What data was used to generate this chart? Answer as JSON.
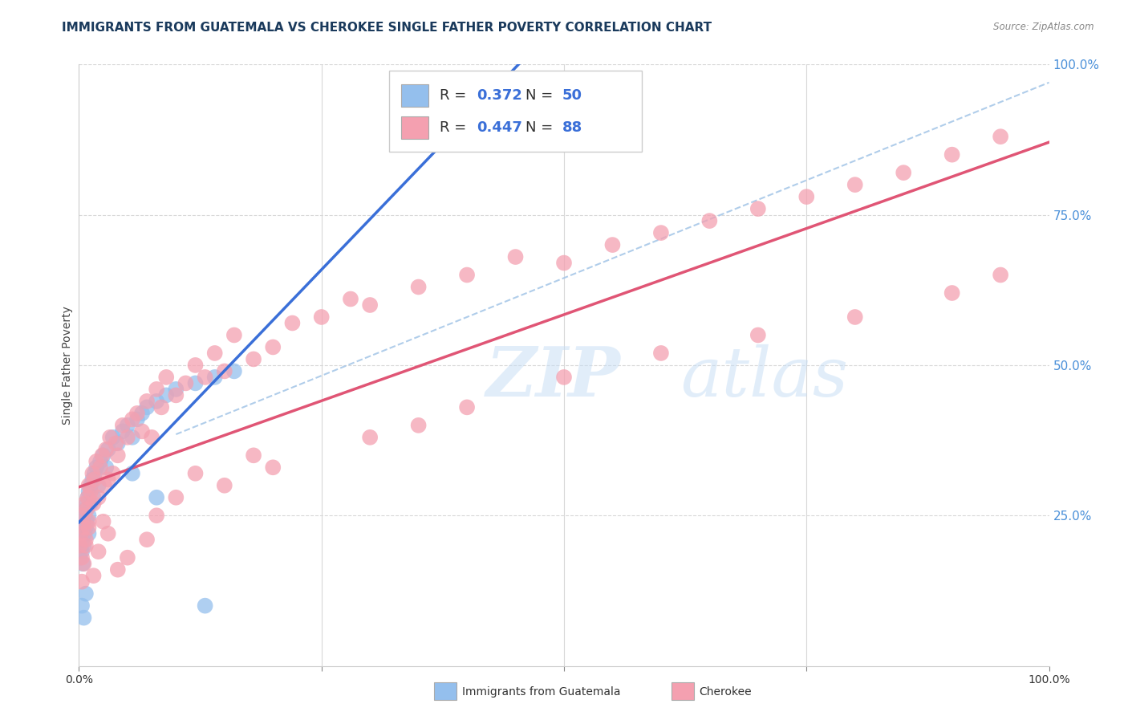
{
  "title": "IMMIGRANTS FROM GUATEMALA VS CHEROKEE SINGLE FATHER POVERTY CORRELATION CHART",
  "source": "Source: ZipAtlas.com",
  "ylabel": "Single Father Poverty",
  "legend_label1": "Immigrants from Guatemala",
  "legend_label2": "Cherokee",
  "r1": 0.372,
  "n1": 50,
  "r2": 0.447,
  "n2": 88,
  "color1": "#94bfed",
  "color2": "#f4a0b0",
  "line1_color": "#3a6fd8",
  "line2_color": "#e05575",
  "dashed_line_color": "#a8c8e8",
  "watermark_text": "ZIP",
  "watermark_text2": "atlas",
  "xlim": [
    0,
    1
  ],
  "ylim": [
    0,
    1
  ],
  "yticks": [
    0.0,
    0.25,
    0.5,
    0.75,
    1.0
  ],
  "ytick_labels": [
    "",
    "25.0%",
    "50.0%",
    "75.0%",
    "100.0%"
  ],
  "scatter1_x": [
    0.001,
    0.002,
    0.002,
    0.003,
    0.003,
    0.004,
    0.004,
    0.005,
    0.005,
    0.006,
    0.006,
    0.007,
    0.007,
    0.008,
    0.008,
    0.009,
    0.01,
    0.01,
    0.01,
    0.012,
    0.012,
    0.014,
    0.015,
    0.016,
    0.018,
    0.02,
    0.022,
    0.025,
    0.028,
    0.03,
    0.035,
    0.04,
    0.045,
    0.05,
    0.055,
    0.06,
    0.065,
    0.07,
    0.08,
    0.09,
    0.1,
    0.12,
    0.14,
    0.16,
    0.003,
    0.005,
    0.007,
    0.055,
    0.08,
    0.13
  ],
  "scatter1_y": [
    0.18,
    0.2,
    0.22,
    0.19,
    0.21,
    0.24,
    0.17,
    0.23,
    0.2,
    0.25,
    0.22,
    0.26,
    0.23,
    0.27,
    0.24,
    0.28,
    0.25,
    0.22,
    0.29,
    0.27,
    0.3,
    0.31,
    0.28,
    0.32,
    0.33,
    0.3,
    0.34,
    0.35,
    0.33,
    0.36,
    0.38,
    0.37,
    0.39,
    0.4,
    0.38,
    0.41,
    0.42,
    0.43,
    0.44,
    0.45,
    0.46,
    0.47,
    0.48,
    0.49,
    0.1,
    0.08,
    0.12,
    0.32,
    0.28,
    0.1
  ],
  "scatter2_x": [
    0.001,
    0.002,
    0.003,
    0.004,
    0.005,
    0.006,
    0.007,
    0.008,
    0.009,
    0.01,
    0.01,
    0.012,
    0.014,
    0.015,
    0.016,
    0.018,
    0.02,
    0.022,
    0.024,
    0.026,
    0.028,
    0.03,
    0.032,
    0.035,
    0.038,
    0.04,
    0.045,
    0.05,
    0.055,
    0.06,
    0.065,
    0.07,
    0.075,
    0.08,
    0.085,
    0.09,
    0.1,
    0.11,
    0.12,
    0.13,
    0.14,
    0.15,
    0.16,
    0.18,
    0.2,
    0.22,
    0.25,
    0.28,
    0.3,
    0.35,
    0.4,
    0.45,
    0.5,
    0.55,
    0.6,
    0.65,
    0.7,
    0.75,
    0.8,
    0.85,
    0.9,
    0.95,
    0.003,
    0.005,
    0.007,
    0.01,
    0.015,
    0.02,
    0.025,
    0.03,
    0.04,
    0.05,
    0.07,
    0.08,
    0.1,
    0.12,
    0.15,
    0.18,
    0.2,
    0.3,
    0.35,
    0.4,
    0.5,
    0.6,
    0.7,
    0.8,
    0.9,
    0.95
  ],
  "scatter2_y": [
    0.2,
    0.22,
    0.18,
    0.25,
    0.23,
    0.27,
    0.21,
    0.26,
    0.28,
    0.24,
    0.3,
    0.29,
    0.32,
    0.27,
    0.31,
    0.34,
    0.28,
    0.33,
    0.35,
    0.3,
    0.36,
    0.31,
    0.38,
    0.32,
    0.37,
    0.35,
    0.4,
    0.38,
    0.41,
    0.42,
    0.39,
    0.44,
    0.38,
    0.46,
    0.43,
    0.48,
    0.45,
    0.47,
    0.5,
    0.48,
    0.52,
    0.49,
    0.55,
    0.51,
    0.53,
    0.57,
    0.58,
    0.61,
    0.6,
    0.63,
    0.65,
    0.68,
    0.67,
    0.7,
    0.72,
    0.74,
    0.76,
    0.78,
    0.8,
    0.82,
    0.85,
    0.88,
    0.14,
    0.17,
    0.2,
    0.23,
    0.15,
    0.19,
    0.24,
    0.22,
    0.16,
    0.18,
    0.21,
    0.25,
    0.28,
    0.32,
    0.3,
    0.35,
    0.33,
    0.38,
    0.4,
    0.43,
    0.48,
    0.52,
    0.55,
    0.58,
    0.62,
    0.65
  ],
  "title_fontsize": 11,
  "axis_label_fontsize": 10,
  "tick_fontsize": 9
}
